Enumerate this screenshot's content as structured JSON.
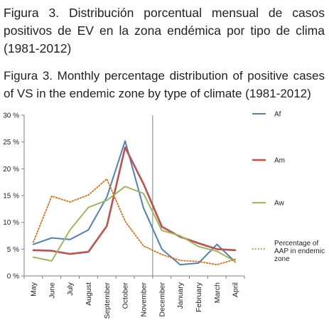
{
  "titles": {
    "es": "Figura 3. Distribución porcentual mensual de casos positivos de EV en la zona endémica por tipo de clima (1981-2012)",
    "en": "Figura 3. Monthly percentage distribution of positive cases of VS in the endemic zone by type of climate (1981-2012)"
  },
  "chart_data": {
    "type": "line",
    "title": "",
    "xlabel": "",
    "ylabel": "",
    "categories": [
      "May",
      "June",
      "July",
      "August",
      "September",
      "October",
      "November",
      "December",
      "January",
      "February",
      "March",
      "April"
    ],
    "ylim": [
      0,
      30
    ],
    "y_ticks": [
      0,
      5,
      10,
      15,
      20,
      25,
      30
    ],
    "y_tick_labels": [
      "0 %",
      "5 %",
      "10 %",
      "15 %",
      "20 %",
      "25 %",
      "30 %"
    ],
    "grid": false,
    "legend_placement": "right",
    "series": [
      {
        "name": "Af",
        "color": "#4f81bd",
        "style": "solid",
        "values": [
          5.9,
          7.1,
          6.8,
          8.6,
          14.7,
          25.2,
          12.7,
          5.0,
          2.1,
          2.4,
          5.9,
          2.6
        ]
      },
      {
        "name": "Am",
        "color": "#c0504d",
        "style": "solid",
        "values": [
          4.8,
          4.7,
          4.1,
          4.5,
          9.3,
          24.0,
          17.2,
          9.2,
          7.3,
          6.1,
          5.0,
          4.8
        ]
      },
      {
        "name": "Aw",
        "color": "#9bbb59",
        "style": "solid",
        "values": [
          3.5,
          2.8,
          8.6,
          12.8,
          14.1,
          16.7,
          15.4,
          8.5,
          7.5,
          5.5,
          4.6,
          2.7
        ]
      },
      {
        "name": "Percentage of AAP in endemic zone",
        "color": "#e46c0a",
        "style": "dotted",
        "values": [
          6.3,
          14.9,
          13.8,
          15.1,
          18.1,
          10.2,
          5.6,
          4.0,
          2.9,
          2.7,
          2.1,
          3.1
        ]
      }
    ]
  }
}
